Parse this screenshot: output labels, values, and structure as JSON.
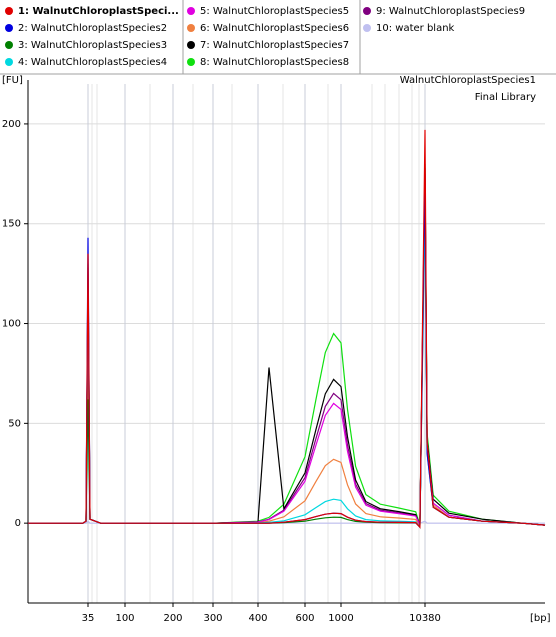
{
  "chart_data": {
    "type": "line",
    "title": "WalnutChloroplastSpecies1",
    "subtitle": "Final Library",
    "y_label": "[FU]",
    "x_label": "[bp]",
    "grid": true,
    "xlim": [
      6,
      280000
    ],
    "xticks": [
      35,
      100,
      200,
      300,
      400,
      600,
      1000,
      10380
    ],
    "ylim": [
      -40,
      220
    ],
    "yticks": [
      0,
      50,
      100,
      150,
      200
    ],
    "x": [
      6,
      30,
      33,
      35,
      37,
      50,
      100,
      200,
      300,
      400,
      440,
      500,
      600,
      700,
      800,
      900,
      1000,
      1200,
      1500,
      2000,
      3000,
      5000,
      8000,
      9000,
      10380,
      11000,
      13000,
      20000,
      50000,
      150000,
      280000
    ],
    "series": [
      {
        "name": "1: WalnutChloroplastSpeci...",
        "color": "#e00000",
        "values": [
          0,
          0,
          1,
          135,
          2,
          0,
          0,
          0,
          0,
          0,
          0,
          0.5,
          1.8,
          3.3,
          4.5,
          5,
          4.8,
          3,
          1.5,
          0.8,
          0.5,
          0.4,
          0.3,
          -2,
          197,
          40,
          8,
          3,
          1,
          0,
          -1
        ]
      },
      {
        "name": "2: WalnutChloroplastSpecies2",
        "color": "#0000e0",
        "values": [
          0,
          0,
          1,
          143,
          2,
          0,
          0,
          0,
          0,
          0,
          0,
          0.5,
          1.8,
          3.3,
          4.5,
          5,
          4.8,
          3,
          1.5,
          0.8,
          0.5,
          0.4,
          0.3,
          -2,
          175,
          35,
          8,
          3,
          1,
          0,
          -1
        ]
      },
      {
        "name": "3: WalnutChloroplastSpecies3",
        "color": "#008000",
        "values": [
          0,
          0,
          1,
          62,
          2,
          0,
          0,
          0,
          0,
          0,
          0,
          0.3,
          1,
          2,
          2.7,
          3,
          2.9,
          1.8,
          0.9,
          0.5,
          0.3,
          0.2,
          0.2,
          -2,
          180,
          38,
          8,
          3,
          1,
          0,
          -1
        ]
      },
      {
        "name": "4: WalnutChloroplastSpecies4",
        "color": "#00d8e0",
        "values": [
          0,
          0,
          1,
          130,
          2,
          0,
          0,
          0,
          0,
          0.1,
          0.4,
          1.2,
          4.2,
          7.8,
          10.8,
          12,
          11.4,
          7.2,
          3.6,
          1.8,
          1.2,
          1,
          0.7,
          -2,
          160,
          35,
          8,
          3,
          1,
          0,
          -1
        ]
      },
      {
        "name": "5: WalnutChloroplastSpecies5",
        "color": "#e000e0",
        "values": [
          0,
          0,
          1,
          128,
          2,
          0,
          0,
          0,
          0,
          0.6,
          1.8,
          6,
          21,
          39,
          54,
          60,
          57,
          36,
          18,
          9,
          6,
          4.8,
          3.6,
          -1,
          170,
          40,
          10,
          4,
          1,
          0,
          -1
        ]
      },
      {
        "name": "6: WalnutChloroplastSpecies6",
        "color": "#f08040",
        "values": [
          0,
          0,
          1,
          125,
          2,
          0,
          0,
          0,
          0,
          0.3,
          1,
          3.2,
          11.2,
          20.8,
          28.8,
          32,
          30.4,
          19.2,
          9.6,
          4.8,
          3.2,
          2.6,
          1.9,
          -2,
          165,
          38,
          9,
          3,
          1,
          0,
          -1
        ]
      },
      {
        "name": "7: WalnutChloroplastSpecies7",
        "color": "#000000",
        "values": [
          0,
          0,
          1,
          120,
          2,
          0,
          0,
          0,
          0,
          0.7,
          78,
          7.2,
          25.2,
          46.8,
          64.8,
          72,
          68.4,
          43.2,
          21.6,
          10.8,
          7.2,
          5.8,
          4.3,
          -1,
          178,
          42,
          12,
          5,
          2,
          0,
          -1
        ]
      },
      {
        "name": "8: WalnutChloroplastSpecies8",
        "color": "#10e010",
        "values": [
          0,
          0,
          1,
          122,
          2,
          0,
          0,
          0,
          0,
          1,
          2.9,
          9.5,
          33.3,
          61.8,
          85.5,
          95,
          90.3,
          57,
          28.5,
          14.3,
          9.5,
          7.6,
          5.7,
          -1,
          172,
          45,
          14,
          6,
          2,
          0,
          -1
        ]
      },
      {
        "name": "9: WalnutChloroplastSpecies9",
        "color": "#800080",
        "values": [
          0,
          0,
          1,
          118,
          2,
          0,
          0,
          0,
          0,
          0.7,
          2,
          6.5,
          22.8,
          42.3,
          58.5,
          65,
          61.8,
          39,
          19.5,
          9.8,
          6.5,
          5.2,
          3.9,
          -1,
          168,
          40,
          10,
          4,
          1,
          0,
          -1
        ]
      },
      {
        "name": "10: water blank",
        "color": "#c0c0f0",
        "values": [
          0,
          0,
          0,
          1,
          0,
          0,
          0,
          0,
          0,
          0,
          0,
          0,
          0,
          0,
          0,
          0,
          0,
          0,
          0,
          0,
          0,
          0,
          0,
          0,
          1,
          0,
          0,
          0,
          0,
          0,
          0
        ]
      }
    ]
  }
}
